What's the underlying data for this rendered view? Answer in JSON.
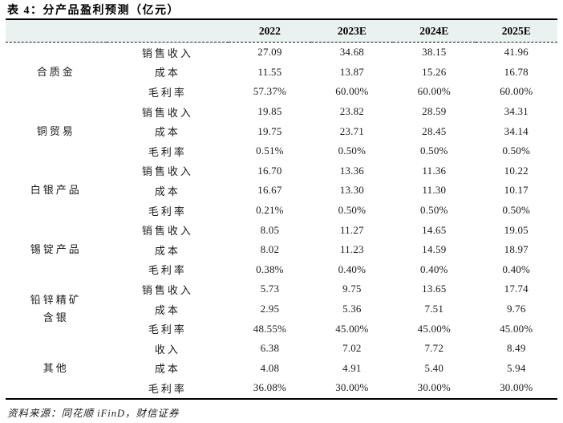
{
  "title": "表 4：分产品盈利预测（亿元）",
  "columns": [
    "2022",
    "2023E",
    "2024E",
    "2025E"
  ],
  "groups": [
    {
      "name": "合质金",
      "rows": [
        {
          "label": "销售收入",
          "values": [
            "27.09",
            "34.68",
            "38.15",
            "41.96"
          ]
        },
        {
          "label": "成本",
          "values": [
            "11.55",
            "13.87",
            "15.26",
            "16.78"
          ]
        },
        {
          "label": "毛利率",
          "values": [
            "57.37%",
            "60.00%",
            "60.00%",
            "60.00%"
          ]
        }
      ]
    },
    {
      "name": "铜贸易",
      "rows": [
        {
          "label": "销售收入",
          "values": [
            "19.85",
            "23.82",
            "28.59",
            "34.31"
          ]
        },
        {
          "label": "成本",
          "values": [
            "19.75",
            "23.71",
            "28.45",
            "34.14"
          ]
        },
        {
          "label": "毛利率",
          "values": [
            "0.51%",
            "0.50%",
            "0.50%",
            "0.50%"
          ]
        }
      ]
    },
    {
      "name": "白银产品",
      "rows": [
        {
          "label": "销售收入",
          "values": [
            "16.70",
            "13.36",
            "11.36",
            "10.22"
          ]
        },
        {
          "label": "成本",
          "values": [
            "16.67",
            "13.30",
            "11.30",
            "10.17"
          ]
        },
        {
          "label": "毛利率",
          "values": [
            "0.21%",
            "0.50%",
            "0.50%",
            "0.50%"
          ]
        }
      ]
    },
    {
      "name": "锡锭产品",
      "rows": [
        {
          "label": "销售收入",
          "values": [
            "8.05",
            "11.27",
            "14.65",
            "19.05"
          ]
        },
        {
          "label": "成本",
          "values": [
            "8.02",
            "11.23",
            "14.59",
            "18.97"
          ]
        },
        {
          "label": "毛利率",
          "values": [
            "0.38%",
            "0.40%",
            "0.40%",
            "0.40%"
          ]
        }
      ]
    },
    {
      "name": "铅锌精矿\n含银",
      "rows": [
        {
          "label": "销售收入",
          "values": [
            "5.73",
            "9.75",
            "13.65",
            "17.74"
          ]
        },
        {
          "label": "成本",
          "values": [
            "2.95",
            "5.36",
            "7.51",
            "9.76"
          ]
        },
        {
          "label": "毛利率",
          "values": [
            "48.55%",
            "45.00%",
            "45.00%",
            "45.00%"
          ]
        }
      ]
    },
    {
      "name": "其他",
      "rows": [
        {
          "label": "收入",
          "values": [
            "6.38",
            "7.02",
            "7.72",
            "8.49"
          ]
        },
        {
          "label": "成本",
          "values": [
            "4.08",
            "4.91",
            "5.40",
            "5.94"
          ]
        },
        {
          "label": "毛利率",
          "values": [
            "36.08%",
            "30.00%",
            "30.00%",
            "30.00%"
          ]
        }
      ]
    }
  ],
  "source": "资料来源：同花顺 iFinD，财信证券",
  "colors": {
    "header_bg": "#e9f2f1",
    "rule": "#000000",
    "text": "#1a1a1a"
  }
}
